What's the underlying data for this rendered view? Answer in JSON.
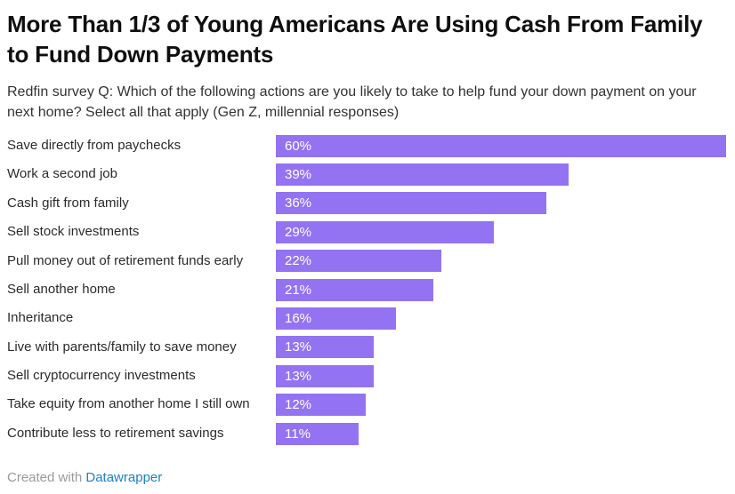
{
  "header": {
    "title": "More Than 1/3 of Young Americans Are Using Cash From Family to Fund Down Payments",
    "description": "Redfin survey Q: Which of the following actions are you likely to take to help fund your down payment on your next home? Select all that apply (Gen Z, millennial responses)"
  },
  "chart_data": {
    "type": "bar",
    "orientation": "horizontal",
    "title": "More Than 1/3 of Young Americans Are Using Cash From Family to Fund Down Payments",
    "subtitle": "Redfin survey Q: Which of the following actions are you likely to take to help fund your down payment on your next home? Select all that apply (Gen Z, millennial responses)",
    "categories": [
      "Save directly from paychecks",
      "Work a second job",
      "Cash gift from family",
      "Sell stock investments",
      "Pull money out of retirement funds early",
      "Sell another home",
      "Inheritance",
      "Live with parents/family to save money",
      "Sell cryptocurrency investments",
      "Take equity from another home I still own",
      "Contribute less to retirement savings"
    ],
    "values": [
      60,
      39,
      36,
      29,
      22,
      21,
      16,
      13,
      13,
      12,
      11
    ],
    "value_suffix": "%",
    "xlim": [
      0,
      60
    ],
    "grid": "off",
    "legend": "none",
    "bar_color": "#9373F2",
    "value_label_color": "#FFFFFF"
  },
  "footer": {
    "credit_prefix": "Created with ",
    "credit_link_label": "Datawrapper",
    "link_color": "#1D81C3"
  }
}
